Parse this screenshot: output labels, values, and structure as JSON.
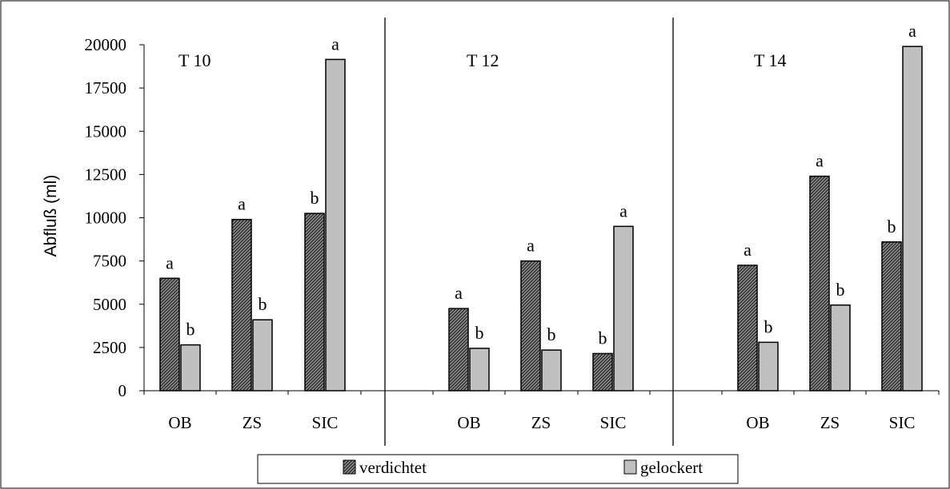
{
  "chart_data": {
    "type": "bar",
    "ylabel": "Abfluß (ml)",
    "ylim": [
      0,
      20000
    ],
    "yticks": [
      "0",
      "2500",
      "5000",
      "7500",
      "10000",
      "12500",
      "15000",
      "17500",
      "20000"
    ],
    "ytick_values": [
      0,
      2500,
      5000,
      7500,
      10000,
      12500,
      15000,
      17500,
      20000
    ],
    "grid": false,
    "legend_placement": "bottom",
    "panels": [
      {
        "title": "T 10",
        "categories": [
          "OB",
          "ZS",
          "SIC"
        ],
        "series": [
          {
            "name": "verdichtet",
            "values": [
              6500,
              9900,
              10250
            ],
            "letters": [
              "a",
              "a",
              "b"
            ]
          },
          {
            "name": "gelockert",
            "values": [
              2650,
              4100,
              19150
            ],
            "letters": [
              "b",
              "b",
              "a"
            ]
          }
        ]
      },
      {
        "title": "T 12",
        "categories": [
          "OB",
          "ZS",
          "SIC"
        ],
        "series": [
          {
            "name": "verdichtet",
            "values": [
              4750,
              7500,
              2150
            ],
            "letters": [
              "a",
              "a",
              "b"
            ]
          },
          {
            "name": "gelockert",
            "values": [
              2450,
              2350,
              9500
            ],
            "letters": [
              "b",
              "b",
              "a"
            ]
          }
        ]
      },
      {
        "title": "T 14",
        "categories": [
          "OB",
          "ZS",
          "SIC"
        ],
        "series": [
          {
            "name": "verdichtet",
            "values": [
              7250,
              12400,
              8600
            ],
            "letters": [
              "a",
              "a",
              "b"
            ]
          },
          {
            "name": "gelockert",
            "values": [
              2800,
              4950,
              19900
            ],
            "letters": [
              "b",
              "b",
              "a"
            ]
          }
        ]
      }
    ],
    "legend": [
      "verdichtet",
      "gelockert"
    ],
    "colors": {
      "verdichtet": "#555555",
      "gelockert": "#c0c0c0"
    }
  }
}
